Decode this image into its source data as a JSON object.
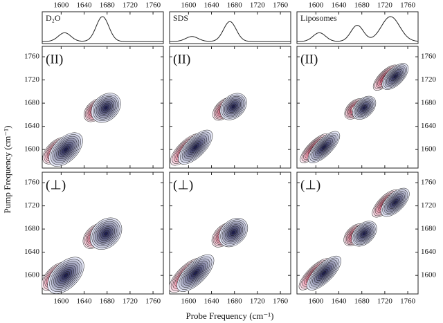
{
  "figure": {
    "x_label": "Probe Frequency (cm⁻¹)",
    "y_label": "Pump Frequency (cm⁻¹)",
    "xlim": [
      1567,
      1778
    ],
    "xticks": [
      1600,
      1640,
      1680,
      1720,
      1760
    ],
    "ylim": [
      1568,
      1778
    ],
    "yticks": [
      1600,
      1640,
      1680,
      1720,
      1760
    ],
    "columns": [
      "D₂O",
      "SDS",
      "Liposomes"
    ],
    "rows": [
      "(II)",
      "(⊥)"
    ]
  }
}
